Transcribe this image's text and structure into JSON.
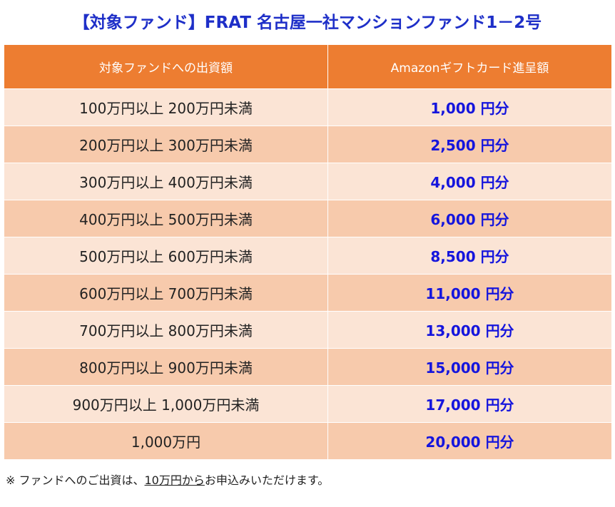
{
  "title": "【対象ファンド】FRAT 名古屋一社マンションファンド1－2号",
  "table": {
    "headers": [
      "対象ファンドへの出資額",
      "Amazonギフトカード進呈額"
    ],
    "rows": [
      {
        "range": "100万円以上 200万円未満",
        "amount": "1,000 円分"
      },
      {
        "range": "200万円以上 300万円未満",
        "amount": "2,500 円分"
      },
      {
        "range": "300万円以上 400万円未満",
        "amount": "4,000 円分"
      },
      {
        "range": "400万円以上 500万円未満",
        "amount": "6,000 円分"
      },
      {
        "range": "500万円以上 600万円未満",
        "amount": "8,500 円分"
      },
      {
        "range": "600万円以上 700万円未満",
        "amount": "11,000 円分"
      },
      {
        "range": "700万円以上 800万円未満",
        "amount": "13,000 円分"
      },
      {
        "range": "800万円以上 900万円未満",
        "amount": "15,000 円分"
      },
      {
        "range": "900万円以上 1,000万円未満",
        "amount": "17,000 円分"
      },
      {
        "range": "1,000万円",
        "amount": "20,000 円分"
      }
    ]
  },
  "footnote": {
    "prefix": "※ ファンドへのご出資は、",
    "underlined": "10万円から",
    "suffix": "お申込みいただけます。"
  },
  "colors": {
    "title": "#1e2fc8",
    "header_bg": "#ed7d31",
    "row_light": "#fbe4d5",
    "row_dark": "#f7caac",
    "amount_text": "#1515dd"
  }
}
